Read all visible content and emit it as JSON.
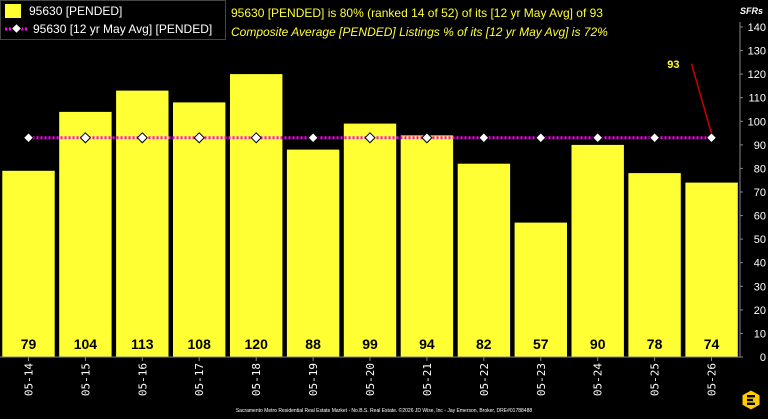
{
  "legend": {
    "bars": "95630 [PENDED]",
    "avg_line": "95630 [12 yr May Avg] [PENDED]"
  },
  "headline": {
    "line1": "95630 [PENDED] is 80% (ranked 14 of 52) of its [12 yr May Avg] of 93",
    "line2": "Composite Average [PENDED] Listings % of its [12 yr May Avg] is 72%"
  },
  "unit_label": "SFRs",
  "avg_callout": "93",
  "footer": "Sacramento Metro Residential Real Estate Market - No.B.S. Real Estate. ©2026 JD Wise, Inc - Jay Emerson, Broker, DRE#01788488",
  "colors": {
    "bar": "#ffff33",
    "avg_line": "#ff00ff",
    "callout_line": "#cc0000",
    "callout_text": "#ffff33",
    "background": "#000000"
  },
  "chart_data": {
    "type": "bar",
    "categories": [
      "05-14",
      "05-15",
      "05-16",
      "05-17",
      "05-18",
      "05-19",
      "05-20",
      "05-21",
      "05-22",
      "05-23",
      "05-24",
      "05-25",
      "05-26"
    ],
    "series": [
      {
        "name": "95630 [PENDED]",
        "type": "bar",
        "values": [
          79,
          104,
          113,
          108,
          120,
          88,
          99,
          94,
          82,
          57,
          90,
          78,
          74
        ]
      },
      {
        "name": "95630 [12 yr May Avg] [PENDED]",
        "type": "line",
        "values": [
          93,
          93,
          93,
          93,
          93,
          93,
          93,
          93,
          93,
          93,
          93,
          93,
          93
        ]
      }
    ],
    "ylim": [
      0,
      140
    ],
    "yticks": [
      0,
      10,
      20,
      30,
      40,
      50,
      60,
      70,
      80,
      90,
      100,
      110,
      120,
      130,
      140
    ],
    "grid": false,
    "legend_position": "top-left",
    "y_axis_position": "right"
  }
}
